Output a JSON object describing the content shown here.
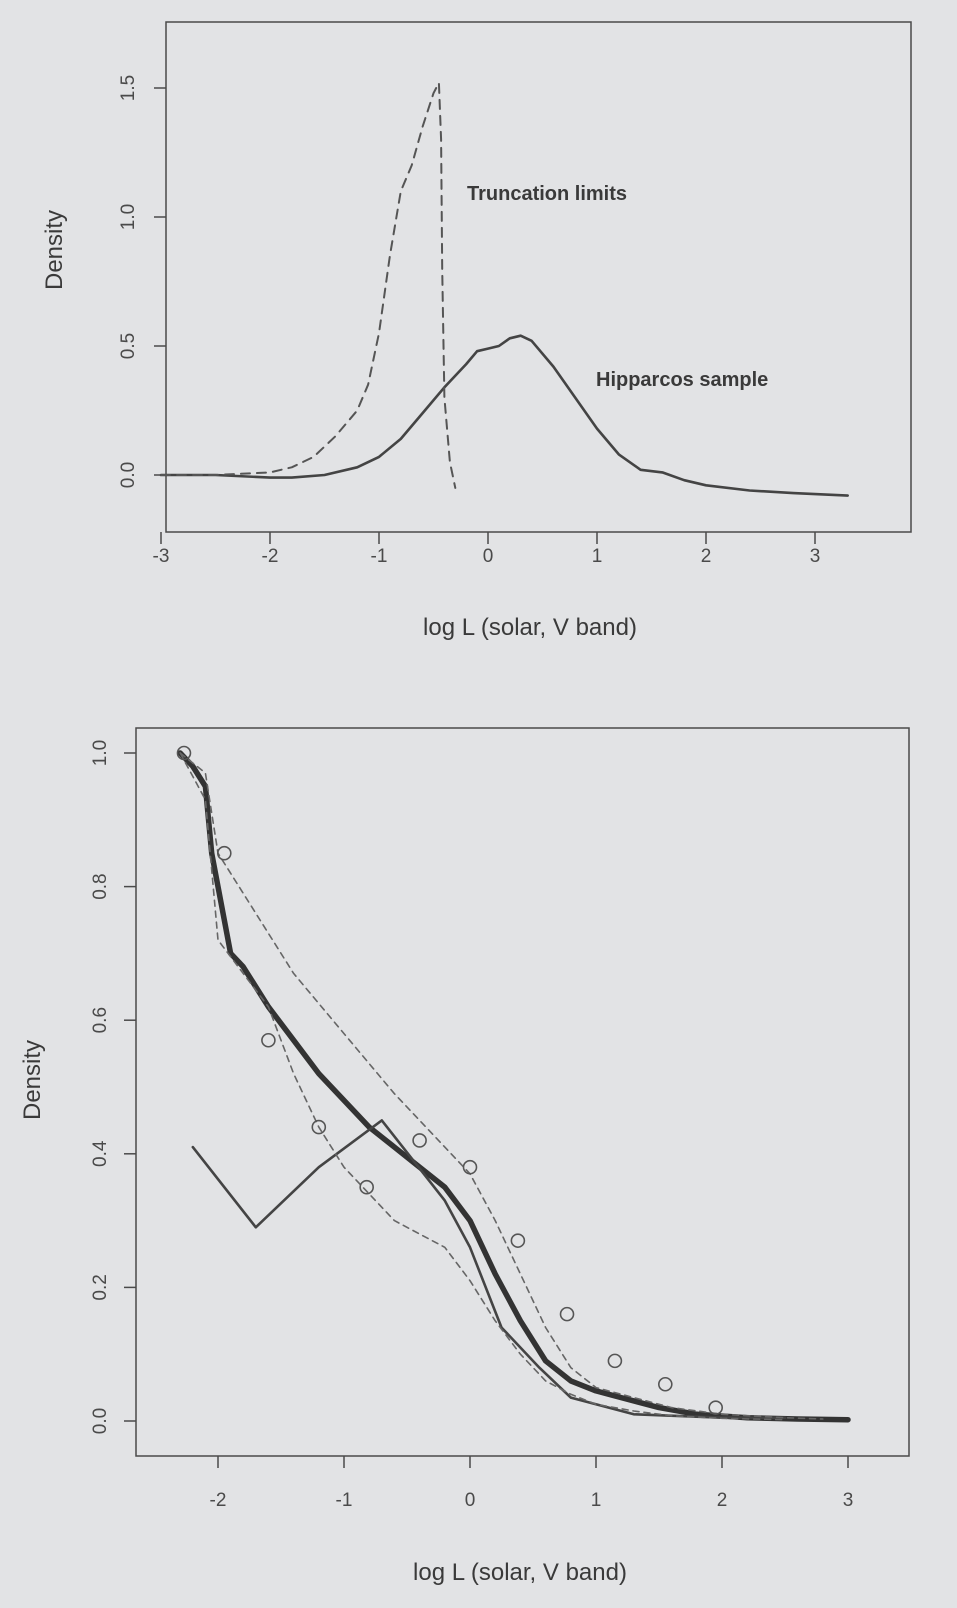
{
  "chart_data": [
    {
      "type": "line",
      "title": "",
      "xlabel": "log L (solar, V band)",
      "ylabel": "Density",
      "xlim": [
        -3.1,
        3.7
      ],
      "ylim": [
        -0.1,
        1.8
      ],
      "xticks": [
        -3,
        -2,
        -1,
        0,
        1,
        2,
        3
      ],
      "yticks": [
        0.0,
        0.5,
        1.0,
        1.5
      ],
      "xtick_labels": [
        "-3",
        "-2",
        "-1",
        "0",
        "1",
        "2",
        "3"
      ],
      "ytick_labels": [
        "0.0",
        "0.5",
        "1.0",
        "1.5"
      ],
      "grid": false,
      "annotations": [
        {
          "text": "Truncation limits",
          "x": -0.3,
          "y": 1.1
        },
        {
          "text": "Hipparcos sample",
          "x": 0.85,
          "y": 0.4
        }
      ],
      "series": [
        {
          "name": "Hipparcos sample",
          "style": "solid",
          "x": [
            -3.0,
            -2.5,
            -2.0,
            -1.8,
            -1.5,
            -1.2,
            -1.0,
            -0.8,
            -0.6,
            -0.4,
            -0.2,
            -0.1,
            0.0,
            0.1,
            0.2,
            0.3,
            0.4,
            0.6,
            0.8,
            1.0,
            1.2,
            1.4,
            1.6,
            1.8,
            2.0,
            2.4,
            2.8,
            3.3
          ],
          "y": [
            0.0,
            0.0,
            -0.01,
            -0.01,
            0.0,
            0.03,
            0.07,
            0.14,
            0.24,
            0.34,
            0.43,
            0.48,
            0.49,
            0.5,
            0.53,
            0.54,
            0.52,
            0.42,
            0.3,
            0.18,
            0.08,
            0.02,
            0.01,
            -0.02,
            -0.04,
            -0.06,
            -0.07,
            -0.08
          ]
        },
        {
          "name": "Truncation limits",
          "style": "dashed",
          "x": [
            -3.0,
            -2.5,
            -2.0,
            -1.8,
            -1.6,
            -1.4,
            -1.2,
            -1.1,
            -1.0,
            -0.9,
            -0.8,
            -0.7,
            -0.6,
            -0.5,
            -0.45,
            -0.43,
            -0.42,
            -0.4,
            -0.35,
            -0.3
          ],
          "y": [
            0.0,
            0.0,
            0.01,
            0.03,
            0.07,
            0.15,
            0.25,
            0.35,
            0.55,
            0.85,
            1.1,
            1.2,
            1.35,
            1.48,
            1.52,
            1.3,
            0.8,
            0.3,
            0.05,
            -0.05
          ]
        }
      ]
    },
    {
      "type": "line",
      "title": "",
      "xlabel": "log L (solar, V band)",
      "ylabel": "Density",
      "xlim": [
        -2.75,
        3.3
      ],
      "ylim": [
        -0.04,
        1.04
      ],
      "xticks": [
        -2,
        -1,
        0,
        1,
        2,
        3
      ],
      "yticks": [
        0.0,
        0.2,
        0.4,
        0.6,
        0.8,
        1.0
      ],
      "xtick_labels": [
        "-2",
        "-1",
        "0",
        "1",
        "2",
        "3"
      ],
      "ytick_labels": [
        "0.0",
        "0.2",
        "0.4",
        "0.6",
        "0.8",
        "1.0"
      ],
      "grid": false,
      "series": [
        {
          "style": "thick",
          "x": [
            -2.3,
            -2.2,
            -2.1,
            -2.05,
            -2.0,
            -1.95,
            -1.9,
            -1.8,
            -1.6,
            -1.4,
            -1.2,
            -1.0,
            -0.8,
            -0.6,
            -0.4,
            -0.2,
            0.0,
            0.2,
            0.4,
            0.6,
            0.8,
            1.0,
            1.2,
            1.5,
            1.8,
            2.2,
            2.6,
            3.0
          ],
          "y": [
            1.0,
            0.98,
            0.95,
            0.85,
            0.8,
            0.75,
            0.7,
            0.68,
            0.62,
            0.57,
            0.52,
            0.48,
            0.44,
            0.41,
            0.38,
            0.35,
            0.3,
            0.22,
            0.15,
            0.09,
            0.06,
            0.045,
            0.035,
            0.02,
            0.01,
            0.005,
            0.003,
            0.002
          ]
        },
        {
          "style": "solid",
          "x": [
            -2.2,
            -1.7,
            -1.2,
            -0.7,
            -0.2,
            0.0,
            0.25,
            0.55,
            0.8,
            1.3,
            2.0,
            2.5
          ],
          "y": [
            0.41,
            0.29,
            0.38,
            0.45,
            0.33,
            0.26,
            0.14,
            0.08,
            0.035,
            0.01,
            0.005,
            0.005
          ]
        },
        {
          "style": "dashed-upper",
          "x": [
            -2.3,
            -2.1,
            -2.0,
            -1.7,
            -1.4,
            -1.0,
            -0.6,
            -0.2,
            0.0,
            0.2,
            0.4,
            0.6,
            0.8,
            1.0,
            1.3,
            1.6,
            2.0,
            2.5,
            2.8
          ],
          "y": [
            1.0,
            0.97,
            0.85,
            0.76,
            0.67,
            0.58,
            0.49,
            0.41,
            0.37,
            0.3,
            0.22,
            0.14,
            0.08,
            0.05,
            0.035,
            0.02,
            0.01,
            0.005,
            0.003
          ]
        },
        {
          "style": "dashed-lower",
          "x": [
            -2.3,
            -2.1,
            -2.0,
            -1.8,
            -1.6,
            -1.4,
            -1.2,
            -1.0,
            -0.8,
            -0.6,
            -0.4,
            -0.2,
            0.0,
            0.2,
            0.4,
            0.6,
            0.8,
            1.0,
            1.3,
            1.6,
            2.0,
            2.5
          ],
          "y": [
            1.0,
            0.93,
            0.72,
            0.67,
            0.62,
            0.52,
            0.44,
            0.38,
            0.34,
            0.3,
            0.28,
            0.26,
            0.21,
            0.15,
            0.1,
            0.06,
            0.04,
            0.025,
            0.015,
            0.008,
            0.004,
            0.002
          ]
        }
      ],
      "points": {
        "marker": "open-circle",
        "x": [
          -2.27,
          -1.95,
          -1.6,
          -1.2,
          -0.82,
          -0.4,
          0.0,
          0.38,
          0.77,
          1.15,
          1.55,
          1.95
        ],
        "y": [
          1.0,
          0.85,
          0.57,
          0.44,
          0.35,
          0.42,
          0.38,
          0.27,
          0.16,
          0.09,
          0.055,
          0.02
        ]
      }
    }
  ]
}
